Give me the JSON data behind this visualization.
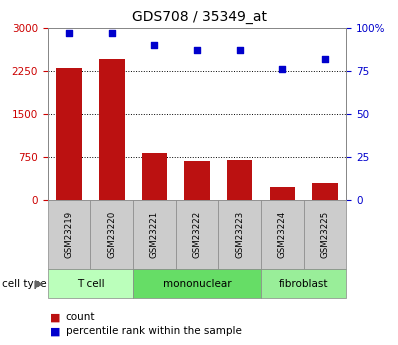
{
  "title": "GDS708 / 35349_at",
  "samples": [
    "GSM23219",
    "GSM23220",
    "GSM23221",
    "GSM23222",
    "GSM23223",
    "GSM23224",
    "GSM23225"
  ],
  "counts": [
    2300,
    2450,
    820,
    680,
    700,
    230,
    290
  ],
  "percentiles": [
    97,
    97,
    90,
    87,
    87,
    76,
    82
  ],
  "cell_types": [
    {
      "label": "T cell",
      "start": 0,
      "end": 2,
      "color": "#bbffbb"
    },
    {
      "label": "mononuclear",
      "start": 2,
      "end": 5,
      "color": "#66dd66"
    },
    {
      "label": "fibroblast",
      "start": 5,
      "end": 7,
      "color": "#99ee99"
    }
  ],
  "bar_color": "#bb1111",
  "dot_color": "#0000cc",
  "left_axis_color": "#cc0000",
  "right_axis_color": "#0000cc",
  "ylim_left": [
    0,
    3000
  ],
  "ylim_right": [
    0,
    100
  ],
  "left_ticks": [
    0,
    750,
    1500,
    2250,
    3000
  ],
  "right_ticks": [
    0,
    25,
    50,
    75,
    100
  ],
  "left_tick_labels": [
    "0",
    "750",
    "1500",
    "2250",
    "3000"
  ],
  "right_tick_labels": [
    "0",
    "25",
    "50",
    "75",
    "100%"
  ],
  "grid_values": [
    750,
    1500,
    2250
  ],
  "legend_count_label": "count",
  "legend_percentile_label": "percentile rank within the sample",
  "cell_type_label": "cell type",
  "header_bg_color": "#cccccc",
  "bar_width": 0.6
}
